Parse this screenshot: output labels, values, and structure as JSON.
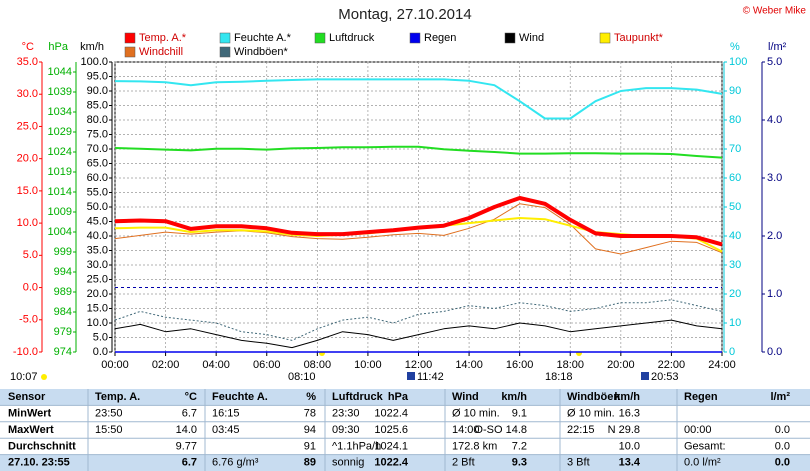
{
  "chart_data": {
    "type": "line",
    "title": "Montag, 27.10.2014",
    "copyright": "© Weber Mike",
    "x": [
      0,
      1,
      2,
      3,
      4,
      5,
      6,
      7,
      8,
      9,
      10,
      11,
      12,
      13,
      14,
      15,
      16,
      17,
      18,
      19,
      20,
      21,
      22,
      23,
      24
    ],
    "xlim": [
      0,
      24
    ],
    "xticks": [
      {
        "value": 0,
        "label": "00:00"
      },
      {
        "value": 2,
        "label": "02:00"
      },
      {
        "value": 4,
        "label": "04:00"
      },
      {
        "value": 6,
        "label": "06:00"
      },
      {
        "value": 8,
        "label": "08:00"
      },
      {
        "value": 10,
        "label": "10:00"
      },
      {
        "value": 12,
        "label": "12:00"
      },
      {
        "value": 14,
        "label": "14:00"
      },
      {
        "value": 16,
        "label": "16:00"
      },
      {
        "value": 18,
        "label": "18:00"
      },
      {
        "value": 20,
        "label": "20:00"
      },
      {
        "value": 22,
        "label": "22:00"
      },
      {
        "value": 24,
        "label": "24:00"
      }
    ],
    "grid": true,
    "axes": [
      {
        "unit": "°C",
        "color": "#ff0000",
        "lim": [
          -10,
          35
        ],
        "ticks": [
          {
            "value": 35,
            "label": "35.0"
          },
          {
            "value": 30,
            "label": "30.0"
          },
          {
            "value": 25,
            "label": "25.0"
          },
          {
            "value": 20,
            "label": "20.0"
          },
          {
            "value": 15,
            "label": "15.0"
          },
          {
            "value": 10,
            "label": "10.0"
          },
          {
            "value": 5,
            "label": "5.0"
          },
          {
            "value": 0,
            "label": "0.0"
          },
          {
            "value": -5,
            "label": "-5.0"
          },
          {
            "value": -10,
            "label": "-10.0"
          }
        ]
      },
      {
        "unit": "hPa",
        "color": "#00b000",
        "lim": [
          974,
          1046.5
        ],
        "ticks": [
          1044,
          1039,
          1034,
          1029,
          1024,
          1019,
          1014,
          1009,
          1004,
          999,
          994,
          989,
          984,
          979,
          974
        ]
      },
      {
        "unit": "km/h",
        "color": "#000000",
        "lim": [
          0,
          100
        ],
        "ticks": [
          {
            "value": 100,
            "label": "100.0"
          },
          {
            "value": 95,
            "label": "95.0"
          },
          {
            "value": 90,
            "label": "90.0"
          },
          {
            "value": 85,
            "label": "85.0"
          },
          {
            "value": 80,
            "label": "80.0"
          },
          {
            "value": 75,
            "label": "75.0"
          },
          {
            "value": 70,
            "label": "70.0"
          },
          {
            "value": 65,
            "label": "65.0"
          },
          {
            "value": 60,
            "label": "60.0"
          },
          {
            "value": 55,
            "label": "55.0"
          },
          {
            "value": 50,
            "label": "50.0"
          },
          {
            "value": 45,
            "label": "45.0"
          },
          {
            "value": 40,
            "label": "40.0"
          },
          {
            "value": 35,
            "label": "35.0"
          },
          {
            "value": 30,
            "label": "30.0"
          },
          {
            "value": 25,
            "label": "25.0"
          },
          {
            "value": 20,
            "label": "20.0"
          },
          {
            "value": 15,
            "label": "15.0"
          },
          {
            "value": 10,
            "label": "10.0"
          },
          {
            "value": 5,
            "label": "5.0"
          },
          {
            "value": 0,
            "label": "0.0"
          }
        ]
      },
      {
        "unit": "%",
        "color": "#00c8d8",
        "lim": [
          0,
          100
        ],
        "ticks": [
          100,
          90,
          80,
          70,
          60,
          50,
          40,
          30,
          20,
          10,
          0
        ]
      },
      {
        "unit": "l/m²",
        "color": "#000080",
        "lim": [
          0,
          5
        ],
        "ticks": [
          {
            "value": 5,
            "label": "5.0"
          },
          {
            "value": 4,
            "label": "4.0"
          },
          {
            "value": 3,
            "label": "3.0"
          },
          {
            "value": 2,
            "label": "2.0"
          },
          {
            "value": 1,
            "label": "1.0"
          },
          {
            "value": 0,
            "label": "0.0"
          }
        ]
      }
    ],
    "series": [
      {
        "name": "Temp. A.*",
        "color": "#ff0000",
        "axis": 0,
        "values": [
          10.3,
          10.4,
          10.3,
          9.1,
          9.5,
          9.5,
          9.2,
          8.5,
          8.3,
          8.3,
          8.6,
          8.9,
          9.3,
          9.6,
          10.8,
          12.5,
          13.9,
          13.0,
          10.5,
          8.4,
          8.0,
          8.0,
          8.0,
          7.8,
          6.7
        ]
      },
      {
        "name": "Feuchte A.*",
        "color": "#33e6f0",
        "axis": 3,
        "values": [
          93.4,
          93.3,
          93.0,
          92.0,
          93.0,
          93.2,
          93.5,
          93.8,
          94.0,
          94.0,
          94.0,
          94.0,
          94.0,
          94.0,
          93.5,
          92.0,
          86.5,
          80.5,
          80.5,
          86.5,
          90.0,
          91.0,
          91.0,
          90.5,
          89.0
        ]
      },
      {
        "name": "Luftdruck",
        "color": "#22dd22",
        "axis": 1,
        "values": [
          1025.0,
          1024.8,
          1024.6,
          1024.4,
          1024.8,
          1024.8,
          1024.6,
          1024.9,
          1025.0,
          1025.2,
          1025.2,
          1025.3,
          1025.3,
          1024.7,
          1024.3,
          1024.0,
          1023.6,
          1023.6,
          1023.7,
          1023.7,
          1023.6,
          1023.6,
          1023.5,
          1023.0,
          1022.6
        ]
      },
      {
        "name": "Regen",
        "color": "#0000ee",
        "axis": 4,
        "values": [
          0,
          0,
          0,
          0,
          0,
          0,
          0,
          0,
          0,
          0,
          0,
          0,
          0,
          0,
          0,
          0,
          0,
          0,
          0,
          0,
          0,
          0,
          0,
          0,
          0
        ]
      },
      {
        "name": "Wind",
        "color": "#000000",
        "axis": 2,
        "values": [
          8,
          9.5,
          7,
          8,
          6,
          4,
          3,
          1.5,
          4,
          7,
          6,
          4,
          6,
          8,
          9,
          8,
          10,
          9,
          7,
          8,
          9,
          10,
          11,
          9,
          8
        ]
      },
      {
        "name": "Taupunkt*",
        "color": "#ffee00",
        "axis": 0,
        "values": [
          9.2,
          9.3,
          9.3,
          8.6,
          8.9,
          8.9,
          8.7,
          8.2,
          8.0,
          8.2,
          8.4,
          8.8,
          9.3,
          9.6,
          10.0,
          10.4,
          10.8,
          10.6,
          9.6,
          8.6,
          8.3,
          8.0,
          7.9,
          7.6,
          5.6
        ]
      },
      {
        "name": "Windchill",
        "color": "#e07020",
        "axis": 0,
        "values": [
          7.6,
          8.1,
          8.6,
          8.3,
          8.6,
          8.8,
          8.5,
          7.9,
          7.6,
          7.5,
          7.8,
          8.2,
          8.4,
          8.1,
          9.2,
          10.6,
          13.0,
          12.4,
          9.8,
          6.0,
          5.2,
          6.2,
          7.2,
          7.0,
          5.4
        ]
      },
      {
        "name": "Windböen*",
        "color": "#406878",
        "axis": 2,
        "values": [
          11,
          14,
          12,
          11,
          10,
          7,
          6,
          4,
          8,
          11,
          12,
          10,
          13,
          14,
          16,
          15,
          17,
          16,
          14,
          15,
          17,
          17,
          18,
          16,
          14
        ]
      }
    ],
    "annotations": [
      "10:07",
      "08:10",
      "11:42",
      "18:18",
      "20:53"
    ]
  },
  "table": {
    "header": [
      "Sensor",
      "Temp. A.",
      "°C",
      "Feuchte A.",
      "%",
      "Luftdruck",
      "hPa",
      "Wind",
      "km/h",
      "Windböen",
      "km/h",
      "Regen",
      "l/m²"
    ],
    "rows": [
      [
        "MinWert",
        "23:50",
        "6.7",
        "16:15",
        "78",
        "23:30",
        "1022.4",
        "Ø 10 min.",
        "9.1",
        "Ø 10 min.",
        "16.3",
        null,
        null
      ],
      [
        "MaxWert",
        "15:50",
        "14.0",
        "03:45",
        "94",
        "09:30",
        "1025.6",
        "14:00",
        "O-SO 14.8",
        "22:15",
        "N 29.8",
        "00:00",
        "0.0"
      ],
      [
        "Durchschnitt",
        null,
        "9.77",
        null,
        "91",
        "^1.1hPa/h",
        "1024.1",
        "172.8 km",
        "7.2",
        null,
        "10.0",
        "Gesamt:",
        "0.0"
      ],
      [
        "27.10. 23:55",
        null,
        "6.7",
        "6.76 g/m³",
        "89",
        "sonnig",
        "1022.4",
        "2 Bft",
        "9.3",
        "3 Bft",
        "13.4",
        "0.0 l/m²",
        "0.0"
      ]
    ]
  }
}
